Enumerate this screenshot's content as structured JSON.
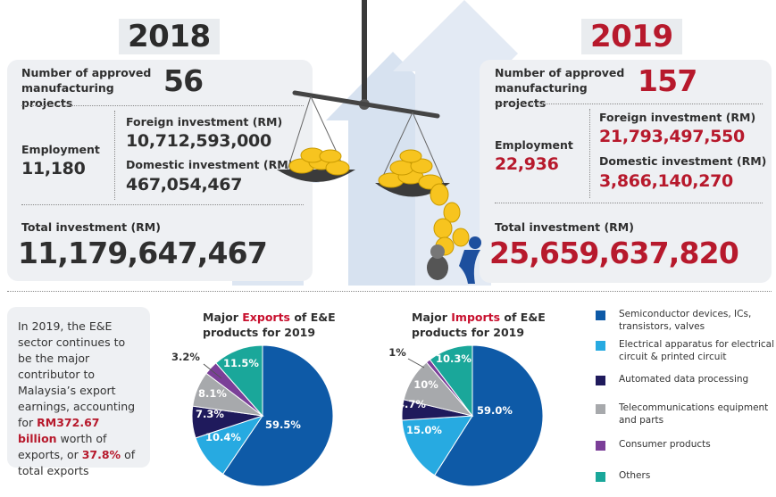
{
  "header": {
    "year_2018": "2018",
    "year_2019": "2019"
  },
  "y2018": {
    "projects_label": "Number of approved manufacturing projects",
    "projects_value": "56",
    "employment_label": "Employment",
    "employment_value": "11,180",
    "foreign_label": "Foreign investment (RM)",
    "foreign_value": "10,712,593,000",
    "domestic_label": "Domestic investment (RM)",
    "domestic_value": "467,054,467",
    "total_label": "Total investment (RM)",
    "total_value": "11,179,647,467"
  },
  "y2019": {
    "projects_label": "Number of approved manufacturing projects",
    "projects_value": "157",
    "employment_label": "Employment",
    "employment_value": "22,936",
    "foreign_label": "Foreign investment (RM)",
    "foreign_value": "21,793,497,550",
    "domestic_label": "Domestic investment (RM)",
    "domestic_value": "3,866,140,270",
    "total_label": "Total investment (RM)",
    "total_value": "25,659,637,820"
  },
  "info": {
    "text_a": "In 2019, the E&E sector continues to be the major contributor to Malaysia’s export earnings, accounting for ",
    "amount": "RM372.67 billion",
    "text_b": " worth of exports, or ",
    "percent": "37.8%",
    "text_c": " of total exports"
  },
  "colors": {
    "semiconductor": "#0e5aa7",
    "electrical": "#27aae1",
    "automated": "#1f1a5c",
    "telecom": "#a7a9ac",
    "consumer": "#7b3f98",
    "others": "#1aa79a",
    "red": "#b7192c",
    "panel": "#eef0f3"
  },
  "chart_data": [
    {
      "type": "pie",
      "title_prefix": "Major ",
      "title_highlight": "Exports",
      "title_suffix": " of E&E products for 2019",
      "slices": [
        {
          "name": "Semiconductor devices, ICs, transistors, valves",
          "value": 59.5,
          "label": "59.5%",
          "color": "#0e5aa7"
        },
        {
          "name": "Electrical apparatus for electrical circuit & printed circuit",
          "value": 10.4,
          "label": "10.4%",
          "color": "#27aae1"
        },
        {
          "name": "Automated data processing",
          "value": 7.3,
          "label": "7.3%",
          "color": "#1f1a5c"
        },
        {
          "name": "Telecommunications equipment and parts",
          "value": 8.1,
          "label": "8.1%",
          "color": "#a7a9ac"
        },
        {
          "name": "Consumer products",
          "value": 3.2,
          "label": "3.2%",
          "color": "#7b3f98"
        },
        {
          "name": "Others",
          "value": 11.5,
          "label": "11.5%",
          "color": "#1aa79a"
        }
      ]
    },
    {
      "type": "pie",
      "title_prefix": "Major ",
      "title_highlight": "Imports",
      "title_suffix": " of E&E products for 2019",
      "slices": [
        {
          "name": "Semiconductor devices, ICs, transistors, valves",
          "value": 59.0,
          "label": "59.0%",
          "color": "#0e5aa7"
        },
        {
          "name": "Electrical apparatus for electrical circuit & printed circuit",
          "value": 15.0,
          "label": "15.0%",
          "color": "#27aae1"
        },
        {
          "name": "Automated data processing",
          "value": 4.7,
          "label": "4.7%",
          "color": "#1f1a5c"
        },
        {
          "name": "Telecommunications equipment and parts",
          "value": 10,
          "label": "10%",
          "color": "#a7a9ac"
        },
        {
          "name": "Consumer products",
          "value": 1,
          "label": "1%",
          "color": "#7b3f98"
        },
        {
          "name": "Others",
          "value": 10.3,
          "label": "10.3%",
          "color": "#1aa79a"
        }
      ]
    }
  ],
  "legend": [
    {
      "label": "Semiconductor devices, ICs, transistors, valves",
      "color": "#0e5aa7"
    },
    {
      "label": "Electrical apparatus for electrical circuit & printed circuit",
      "color": "#27aae1"
    },
    {
      "label": "Automated data processing",
      "color": "#1f1a5c"
    },
    {
      "label": "Telecommunications equipment and parts",
      "color": "#a7a9ac"
    },
    {
      "label": "Consumer products",
      "color": "#7b3f98"
    },
    {
      "label": "Others",
      "color": "#1aa79a"
    }
  ]
}
